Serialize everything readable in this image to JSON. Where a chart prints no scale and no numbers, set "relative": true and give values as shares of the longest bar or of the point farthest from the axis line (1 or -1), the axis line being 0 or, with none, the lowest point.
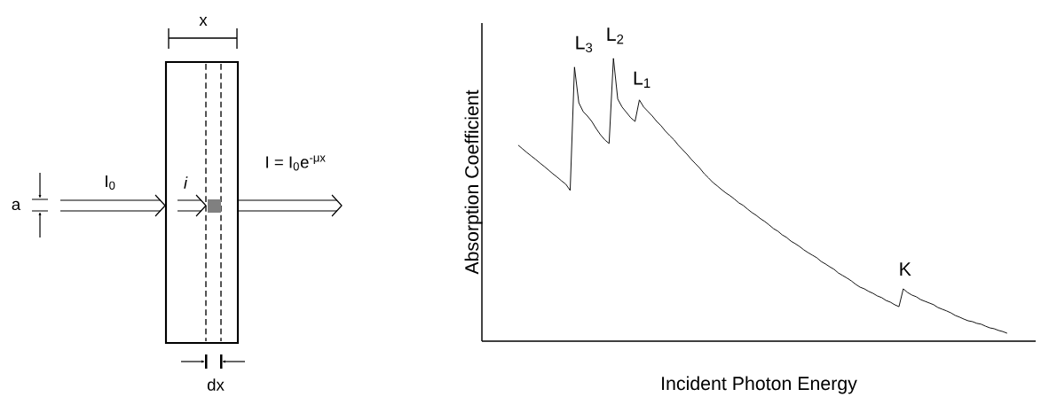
{
  "chart_data": [
    {
      "type": "other",
      "annotations": [
        "x",
        "a",
        "I$_{0}$",
        "i",
        "I = I$_{0}$e$^{-μx}$",
        "dx"
      ]
    },
    {
      "type": "line",
      "relative": true,
      "xlabel": "Incident Photon Energy",
      "ylabel": "Absorption Coefficient",
      "color": "#000000",
      "annotations": [
        "L$_{3}$",
        "L$_{2}$",
        "L$_{1}$",
        "K"
      ],
      "categories": [
        null,
        null,
        null,
        null,
        null,
        null,
        null,
        null,
        null,
        null,
        null,
        null,
        null,
        null,
        null,
        null,
        null,
        null,
        null,
        null,
        null,
        null,
        null,
        null,
        null,
        null,
        null,
        null,
        null,
        null,
        null,
        null,
        null,
        null,
        null,
        null,
        null,
        null,
        null,
        null,
        null,
        null,
        null,
        null,
        null,
        null,
        null,
        null,
        null,
        null,
        null,
        null,
        null,
        null,
        null,
        null,
        null,
        null,
        null,
        null,
        null,
        null,
        null,
        null,
        null,
        null,
        null,
        null,
        null,
        null,
        null,
        null,
        null,
        null,
        null,
        null,
        null,
        null,
        null,
        null,
        null,
        null,
        null,
        null,
        null,
        null,
        null,
        null,
        null,
        null,
        null,
        null,
        null,
        null,
        null,
        null,
        null,
        null,
        null,
        null,
        null,
        null,
        null,
        null,
        null,
        null,
        null,
        null,
        null,
        null,
        null,
        null,
        null,
        null
      ],
      "values": [
        0.693,
        0.68,
        0.667,
        0.655,
        0.643,
        0.63,
        0.618,
        0.605,
        0.592,
        0.58,
        0.567,
        0.555,
        0.533,
        0.969,
        0.843,
        0.812,
        0.796,
        0.777,
        0.752,
        0.73,
        0.712,
        0.699,
        1.0,
        0.856,
        0.828,
        0.809,
        0.79,
        0.777,
        0.853,
        0.828,
        0.812,
        0.796,
        0.777,
        0.762,
        0.743,
        0.727,
        0.712,
        0.693,
        0.677,
        0.661,
        0.643,
        0.627,
        0.611,
        0.592,
        0.577,
        0.561,
        0.549,
        0.536,
        0.524,
        0.514,
        0.502,
        0.489,
        0.48,
        0.467,
        0.455,
        0.445,
        0.433,
        0.423,
        0.411,
        0.398,
        0.389,
        0.376,
        0.367,
        0.354,
        0.345,
        0.335,
        0.323,
        0.313,
        0.304,
        0.295,
        0.282,
        0.273,
        0.263,
        0.254,
        0.241,
        0.232,
        0.223,
        0.213,
        0.201,
        0.191,
        0.185,
        0.176,
        0.169,
        0.16,
        0.154,
        0.144,
        0.138,
        0.129,
        0.122,
        0.185,
        0.172,
        0.163,
        0.157,
        0.147,
        0.141,
        0.135,
        0.129,
        0.119,
        0.113,
        0.107,
        0.1,
        0.091,
        0.085,
        0.078,
        0.072,
        0.069,
        0.063,
        0.06,
        0.053,
        0.047,
        0.044,
        0.038,
        0.034,
        0.028
      ]
    }
  ]
}
